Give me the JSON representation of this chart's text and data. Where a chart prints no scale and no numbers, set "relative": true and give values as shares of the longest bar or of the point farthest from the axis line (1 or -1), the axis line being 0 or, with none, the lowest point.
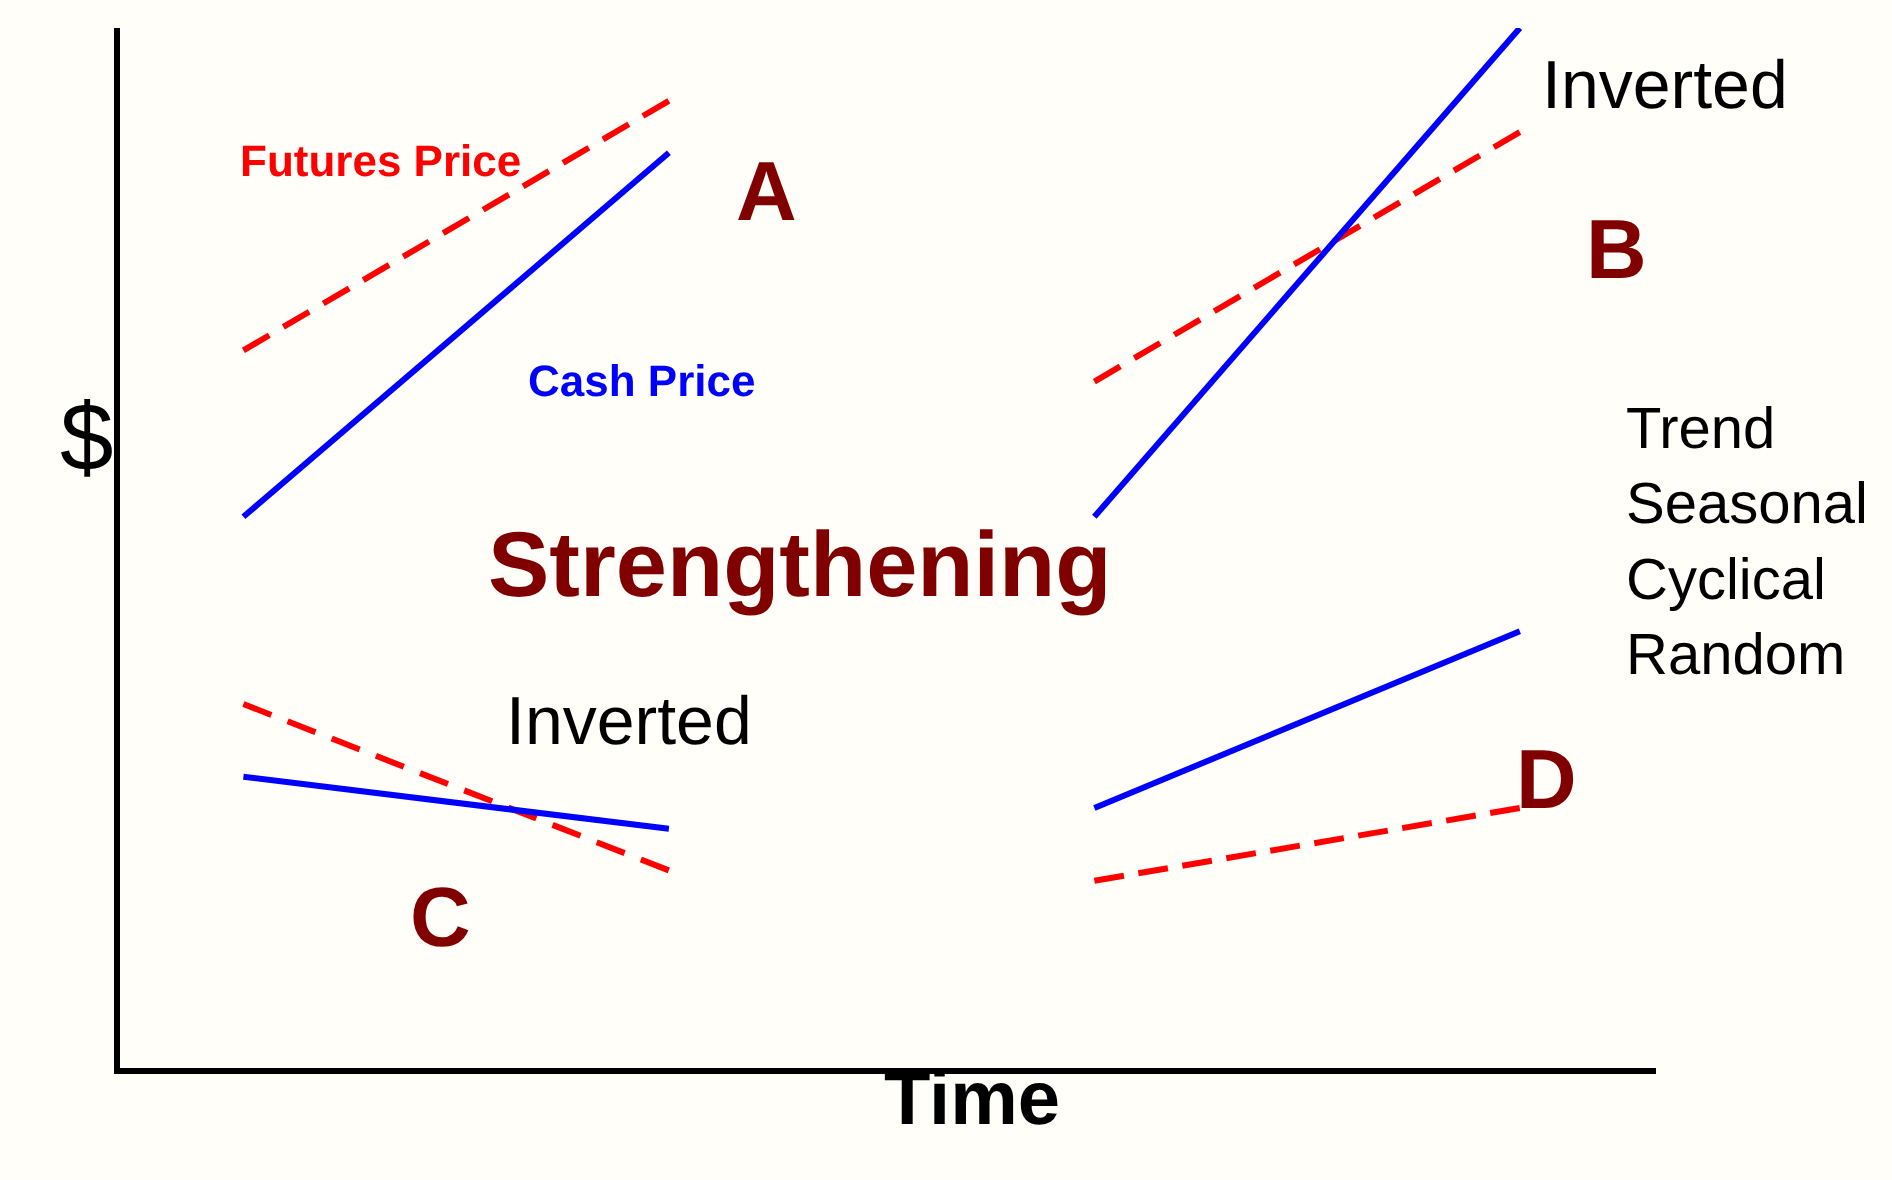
{
  "chart_data": {
    "type": "line",
    "relative": true,
    "xlabel": "Time",
    "ylabel": "$",
    "categories": [
      null,
      null,
      null,
      null
    ],
    "series": [
      {
        "name": "Futures Price",
        "color": "#ff0000",
        "line_style": "dashed",
        "values": [
          0.69,
          0.93,
          null,
          null
        ]
      },
      {
        "name": "Cash Price",
        "color": "#0000ff",
        "line_style": "solid",
        "values": [
          0.53,
          0.88,
          null,
          null
        ]
      },
      {
        "color": "#ff0000",
        "line_style": "dashed",
        "values": [
          null,
          null,
          0.66,
          0.9
        ]
      },
      {
        "color": "#0000ff",
        "line_style": "solid",
        "values": [
          null,
          null,
          0.53,
          1
        ]
      },
      {
        "color": "#ff0000",
        "line_style": "dashed",
        "values": [
          0.35,
          0.19,
          null,
          null
        ]
      },
      {
        "color": "#0000ff",
        "line_style": "solid",
        "values": [
          0.28,
          0.23,
          null,
          null
        ]
      },
      {
        "color": "#ff0000",
        "line_style": "dashed",
        "values": [
          null,
          null,
          0.18,
          0.25
        ]
      },
      {
        "color": "#0000ff",
        "line_style": "solid",
        "values": [
          null,
          null,
          0.25,
          0.42
        ]
      }
    ],
    "annotations": [
      "Inverted",
      "A",
      "B",
      "Strengthening",
      "Trend\nSeasonal\nCyclical\nRandom",
      "Inverted",
      "C",
      "D"
    ]
  }
}
